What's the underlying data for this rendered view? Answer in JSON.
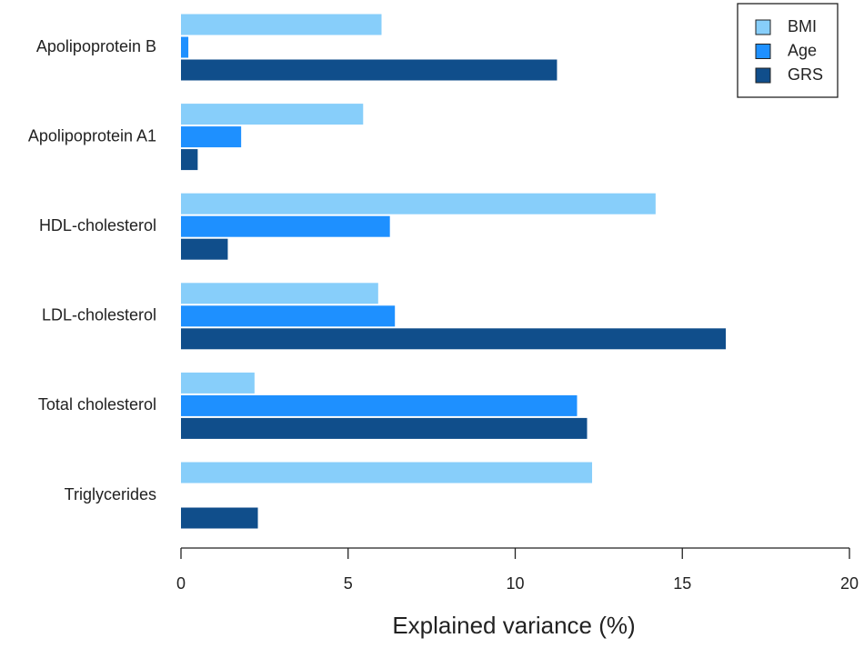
{
  "chart_data": {
    "type": "hbar",
    "x_label": "Explained variance (%)",
    "categories": [
      "Apolipoprotein B",
      "Apolipoprotein A1",
      "HDL-cholesterol",
      "LDL-cholesterol",
      "Total cholesterol",
      "Triglycerides"
    ],
    "series": [
      {
        "name": "BMI",
        "color": "#87cefa",
        "values": [
          6.0,
          5.45,
          14.2,
          5.9,
          2.2,
          12.3
        ]
      },
      {
        "name": "Age",
        "color": "#1e90ff",
        "values": [
          0.22,
          1.8,
          6.25,
          6.4,
          11.85,
          null
        ]
      },
      {
        "name": "GRS",
        "color": "#104e8b",
        "values": [
          11.25,
          0.5,
          1.4,
          16.3,
          12.15,
          2.3
        ]
      }
    ],
    "xlim": [
      0,
      20
    ],
    "xticks": [
      0,
      5,
      10,
      15,
      20
    ],
    "legend": "top-right"
  }
}
